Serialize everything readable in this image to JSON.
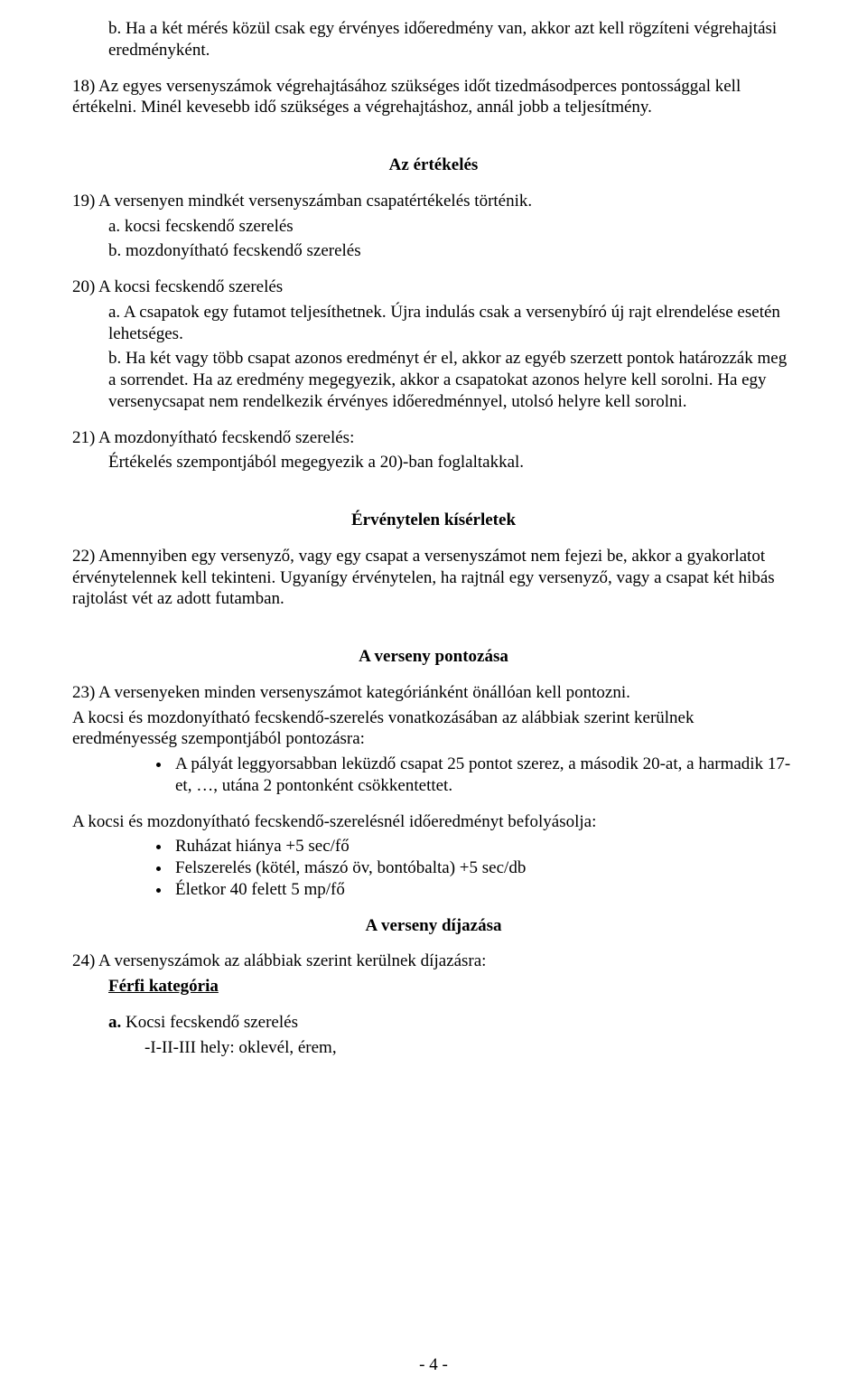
{
  "para_b": "b. Ha a két mérés közül csak egy érvényes időeredmény van, akkor azt kell rögzíteni végrehajtási eredményként.",
  "para_18": "18) Az egyes versenyszámok végrehajtásához szükséges időt tizedmásodperces pontossággal kell értékelni. Minél kevesebb idő szükséges a végrehajtáshoz, annál jobb a teljesítmény.",
  "heading_eval": "Az értékelés",
  "para_19": "19) A versenyen mindkét versenyszámban csapatértékelés történik.",
  "para_19a": "a. kocsi fecskendő szerelés",
  "para_19b": "b. mozdonyítható fecskendő szerelés",
  "para_20": "20) A kocsi fecskendő szerelés",
  "para_20a": "a. A csapatok egy futamot teljesíthetnek. Újra indulás csak a versenybíró új rajt elrendelése esetén lehetséges.",
  "para_20b": "b. Ha két vagy több csapat azonos eredményt ér el, akkor az egyéb szerzett pontok határozzák meg a sorrendet. Ha az eredmény megegyezik, akkor a csapatokat azonos helyre kell sorolni. Ha egy versenycsapat nem rendelkezik érvényes időeredménnyel, utolsó helyre kell sorolni.",
  "para_21": "21) A mozdonyítható fecskendő szerelés:",
  "para_21_body": "Értékelés szempontjából megegyezik a 20)-ban foglaltakkal.",
  "heading_invalid": "Érvénytelen kísérletek",
  "para_22": "22) Amennyiben egy versenyző, vagy egy csapat a versenyszámot nem fejezi be, akkor a gyakorlatot érvénytelennek kell tekinteni. Ugyanígy érvénytelen, ha rajtnál egy versenyző, vagy a csapat két hibás rajtolást vét az adott futamban.",
  "heading_scoring": "A verseny pontozása",
  "para_23_line1": "23) A versenyeken minden versenyszámot kategóriánként önállóan kell pontozni.",
  "para_23_line2": "A kocsi és mozdonyítható fecskendő-szerelés vonatkozásában az alábbiak szerint kerülnek eredményesség szempontjából pontozásra:",
  "bullet_23_1": "A pályát leggyorsabban leküzdő csapat 25 pontot szerez, a második 20-at, a harmadik 17-et, …, utána 2 pontonként csökkentettet.",
  "para_23_after": "A kocsi és mozdonyítható fecskendő-szerelésnél időeredményt befolyásolja:",
  "bullet_factors_1": "Ruházat hiánya +5 sec/fő",
  "bullet_factors_2": "Felszerelés (kötél, mászó öv, bontóbalta) +5 sec/db",
  "bullet_factors_3": "Életkor 40 felett 5 mp/fő",
  "heading_awards": "A verseny díjazása",
  "para_24": "24) A versenyszámok az alábbiak szerint kerülnek díjazásra:",
  "para_24_cat": "Férfi kategória",
  "para_24a_label": "a.",
  "para_24a_text": "Kocsi fecskendő szerelés",
  "para_24a_sub": "-I-II-III hely: oklevél, érem,",
  "page_number": "- 4 -"
}
